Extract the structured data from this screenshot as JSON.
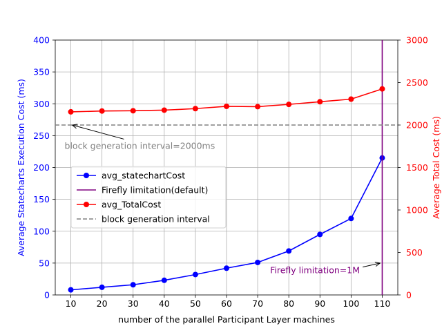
{
  "chart_data": {
    "type": "line",
    "xlabel": "number of the  parallel Participant Layer machines",
    "ylabel_left": "Average Statecharts Execution Cost (ms)",
    "ylabel_right": "Average Total Cost (ms)",
    "x": [
      10,
      20,
      30,
      40,
      50,
      60,
      70,
      80,
      90,
      100,
      110
    ],
    "xlim": [
      5,
      115
    ],
    "ylim_left": [
      0,
      400
    ],
    "ylim_right": [
      0,
      3000
    ],
    "xticks": [
      "10",
      "20",
      "30",
      "40",
      "50",
      "60",
      "70",
      "80",
      "90",
      "100",
      "110"
    ],
    "yticks_left": [
      "0",
      "50",
      "100",
      "150",
      "200",
      "250",
      "300",
      "350",
      "400"
    ],
    "yticks_right": [
      "0",
      "500",
      "1000",
      "1500",
      "2000",
      "2500",
      "3000"
    ],
    "grid": true,
    "legend_position": "center-left",
    "series": [
      {
        "name": "avg_statechartCost",
        "axis": "left",
        "color": "#0000ff",
        "marker": "circle",
        "values": [
          8,
          12,
          16,
          23,
          32,
          42,
          51,
          69,
          95,
          120,
          215
        ]
      },
      {
        "name": "Firefly limitation(default)",
        "kind": "vline",
        "color": "#800080",
        "x": 110
      },
      {
        "name": "avg_TotalCost",
        "axis": "right",
        "color": "#ff0000",
        "marker": "circle",
        "values": [
          2155,
          2165,
          2168,
          2175,
          2193,
          2220,
          2216,
          2243,
          2274,
          2305,
          2425
        ]
      },
      {
        "name": "block generation interval",
        "kind": "hline",
        "axis": "right",
        "color": "#808080",
        "style": "dashed",
        "y": 2000
      }
    ],
    "annotations": [
      {
        "text": "block generation interval=2000ms",
        "color": "#808080",
        "arrow_to": {
          "x": 10,
          "y_right": 2000
        },
        "text_at": {
          "x": 8,
          "y_right": 1720
        }
      },
      {
        "text": "Firefly limitation=1M",
        "color": "#800080",
        "arrow_to": {
          "x": 110,
          "y_right": 375
        },
        "text_at": {
          "x": 74,
          "y_right": 255
        }
      }
    ]
  }
}
